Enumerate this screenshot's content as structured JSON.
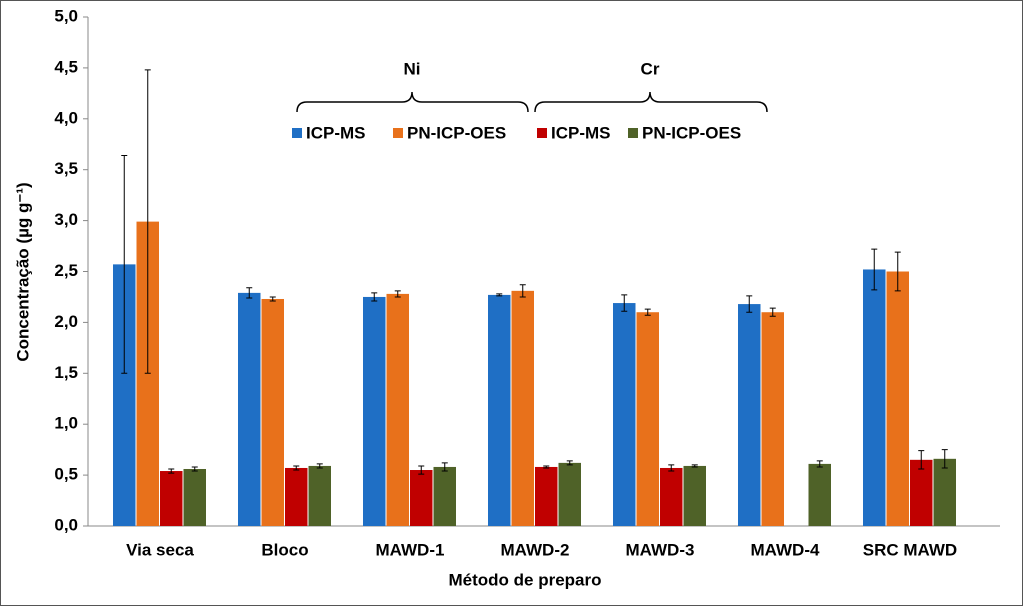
{
  "chart_data": {
    "type": "bar",
    "categories": [
      "Via seca",
      "Bloco",
      "MAWD-1",
      "MAWD-2",
      "MAWD-3",
      "MAWD-4",
      "SRC MAWD"
    ],
    "series": [
      {
        "name": "ICP-MS",
        "color": "#1f6fc5",
        "values": [
          2.57,
          2.29,
          2.25,
          2.27,
          2.19,
          2.18,
          2.52
        ],
        "errors": [
          1.07,
          0.05,
          0.04,
          0.01,
          0.08,
          0.08,
          0.2
        ]
      },
      {
        "name": "PN-ICP-OES",
        "color": "#e8711b",
        "values": [
          2.99,
          2.23,
          2.28,
          2.31,
          2.1,
          2.1,
          2.5
        ],
        "errors": [
          1.49,
          0.02,
          0.03,
          0.06,
          0.03,
          0.04,
          0.19
        ]
      },
      {
        "name": "ICP-MS",
        "color": "#c00000",
        "values": [
          0.54,
          0.57,
          0.55,
          0.58,
          0.57,
          null,
          0.65
        ],
        "errors": [
          0.02,
          0.02,
          0.04,
          0.01,
          0.03,
          null,
          0.09
        ]
      },
      {
        "name": "PN-ICP-OES",
        "color": "#4f6228",
        "values": [
          0.56,
          0.59,
          0.58,
          0.62,
          0.59,
          0.61,
          0.66
        ],
        "errors": [
          0.02,
          0.02,
          0.04,
          0.02,
          0.01,
          0.03,
          0.09
        ]
      }
    ],
    "annotations": [
      "Ni",
      "Cr"
    ],
    "xlabel": "Método de preparo",
    "ylabel": "Concentração (µg g⁻¹)",
    "ylim": [
      0,
      5
    ],
    "yticks": [
      {
        "value": 0,
        "label": "0,0"
      },
      {
        "value": 0.5,
        "label": "0,5"
      },
      {
        "value": 1,
        "label": "1,0"
      },
      {
        "value": 1.5,
        "label": "1,5"
      },
      {
        "value": 2,
        "label": "2,0"
      },
      {
        "value": 2.5,
        "label": "2,5"
      },
      {
        "value": 3,
        "label": "3,0"
      },
      {
        "value": 3.5,
        "label": "3,5"
      },
      {
        "value": 4,
        "label": "4,0"
      },
      {
        "value": 4.5,
        "label": "4,5"
      },
      {
        "value": 5,
        "label": "5,0"
      }
    ]
  }
}
